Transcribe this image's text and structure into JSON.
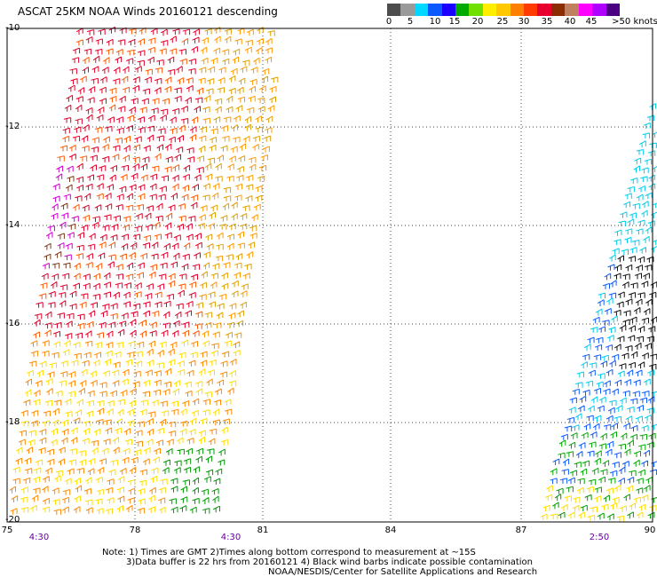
{
  "title": "ASCAT 25KM NOAA Winds 20160121 descending",
  "colorbar": {
    "colors": [
      "#4d4d4d",
      "#9a9a9a",
      "#00d8ff",
      "#0a5aff",
      "#1c00ff",
      "#00aa00",
      "#70e000",
      "#ffee00",
      "#ffc800",
      "#ff8000",
      "#ff3b00",
      "#e8002e",
      "#8b2d00",
      "#c08060",
      "#ff00ff",
      "#b000ff",
      "#4b0082"
    ],
    "labels": [
      "0",
      "5",
      "10",
      "15",
      "20",
      "25",
      "30",
      "35",
      "40",
      "45",
      ">50 knots"
    ]
  },
  "axes": {
    "lat_labels": [
      "-10",
      "-12",
      "-14",
      "-16",
      "-18",
      "-20"
    ],
    "lon_labels": [
      "75",
      "78",
      "81",
      "84",
      "87",
      "90"
    ]
  },
  "times": [
    "4:30",
    "4:30",
    "2:50"
  ],
  "notes": {
    "line1": "Note: 1) Times are GMT 2)Times along bottom correspond to measurement at ~15S",
    "line2": "3)Data buffer is 22 hrs from 20160121 4) Black wind barbs indicate possible contamination",
    "line3": "NOAA/NESDIS/Center for Satellite Applications and Research"
  }
}
